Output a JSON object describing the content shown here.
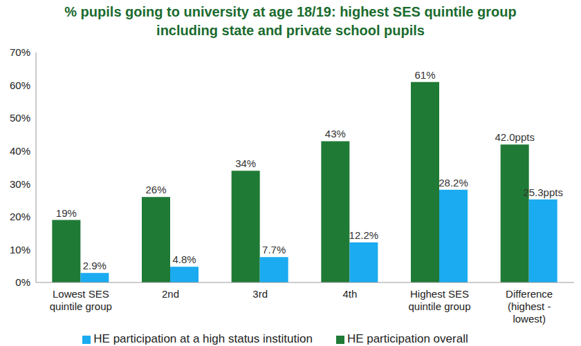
{
  "chart_data": {
    "type": "bar",
    "title": "% pupils going to university at age 18/19: highest SES quintile group including state and private school pupils",
    "categories": [
      "Lowest SES quintile group",
      "2nd",
      "3rd",
      "4th",
      "Highest SES quintile group",
      "Difference (highest - lowest)"
    ],
    "series": [
      {
        "name": "HE participation overall",
        "color": "#1f7a35",
        "values": [
          19,
          26,
          34,
          43,
          61,
          42.0
        ],
        "value_labels": [
          "19%",
          "26%",
          "34%",
          "43%",
          "61%",
          "42.0ppts"
        ]
      },
      {
        "name": "HE participation at a high status institution",
        "color": "#1aabf0",
        "values": [
          2.9,
          4.8,
          7.7,
          12.2,
          28.2,
          25.3
        ],
        "value_labels": [
          "2.9%",
          "4.8%",
          "7.7%",
          "12.2%",
          "28.2%",
          "25.3ppts"
        ]
      }
    ],
    "ylim": [
      0,
      70
    ],
    "yticks": [
      {
        "value": 0,
        "label": "0%"
      },
      {
        "value": 10,
        "label": "10%"
      },
      {
        "value": 20,
        "label": "20%"
      },
      {
        "value": 30,
        "label": "30%"
      },
      {
        "value": 40,
        "label": "40%"
      },
      {
        "value": 50,
        "label": "50%"
      },
      {
        "value": 60,
        "label": "60%"
      },
      {
        "value": 70,
        "label": "70%"
      }
    ],
    "grid": false,
    "legend": "bottom",
    "data_labels": true
  }
}
